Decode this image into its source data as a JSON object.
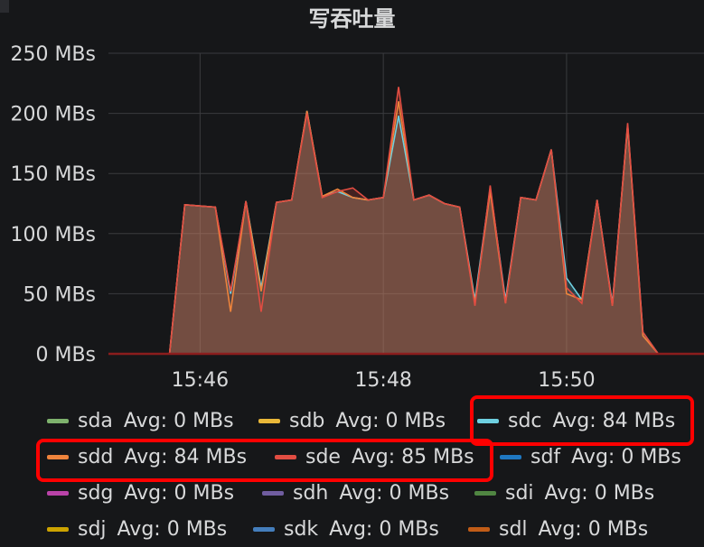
{
  "panel": {
    "title": "写吞吐量"
  },
  "chart_data": {
    "type": "area",
    "title": "写吞吐量",
    "x_ticks": [
      "15:46",
      "15:48",
      "15:50"
    ],
    "y_ticks": [
      "0 MBs",
      "50 MBs",
      "100 MBs",
      "150 MBs",
      "200 MBs",
      "250 MBs"
    ],
    "ylim": [
      0,
      250
    ],
    "x_range": [
      "15:45:00",
      "15:51:30"
    ],
    "grid": true,
    "x": [
      "15:45:40",
      "15:45:50",
      "15:46:00",
      "15:46:10",
      "15:46:20",
      "15:46:30",
      "15:46:40",
      "15:46:50",
      "15:47:00",
      "15:47:10",
      "15:47:20",
      "15:47:30",
      "15:47:40",
      "15:47:50",
      "15:48:00",
      "15:48:10",
      "15:48:20",
      "15:48:30",
      "15:48:40",
      "15:48:50",
      "15:49:00",
      "15:49:10",
      "15:49:20",
      "15:49:30",
      "15:49:40",
      "15:49:50",
      "15:50:00",
      "15:50:10",
      "15:50:20",
      "15:50:30",
      "15:50:40",
      "15:50:50",
      "15:51:00"
    ],
    "series": [
      {
        "name": "sda",
        "color": "#7eb26d",
        "values": [
          0,
          0,
          0,
          0,
          0,
          0,
          0,
          0,
          0,
          0,
          0,
          0,
          0,
          0,
          0,
          0,
          0,
          0,
          0,
          0,
          0,
          0,
          0,
          0,
          0,
          0,
          0,
          0,
          0,
          0,
          0,
          0,
          0
        ]
      },
      {
        "name": "sdb",
        "color": "#eab839",
        "values": [
          0,
          0,
          0,
          0,
          0,
          0,
          0,
          0,
          0,
          0,
          0,
          0,
          0,
          0,
          0,
          0,
          0,
          0,
          0,
          0,
          0,
          0,
          0,
          0,
          0,
          0,
          0,
          0,
          0,
          0,
          0,
          0,
          0
        ]
      },
      {
        "name": "sdc",
        "color": "#6ed0e0",
        "values": [
          0,
          124,
          123,
          122,
          50,
          127,
          55,
          126,
          128,
          202,
          131,
          135,
          130,
          128,
          130,
          198,
          128,
          132,
          125,
          122,
          45,
          138,
          45,
          130,
          128,
          170,
          63,
          45,
          128,
          42,
          190,
          18,
          0
        ]
      },
      {
        "name": "sdd",
        "color": "#ef843c",
        "values": [
          0,
          124,
          123,
          122,
          35,
          127,
          52,
          126,
          128,
          202,
          131,
          137,
          130,
          128,
          130,
          210,
          128,
          132,
          125,
          122,
          42,
          135,
          42,
          130,
          128,
          170,
          50,
          45,
          128,
          40,
          190,
          15,
          0
        ]
      },
      {
        "name": "sde",
        "color": "#e24d42",
        "values": [
          0,
          124,
          123,
          122,
          52,
          127,
          35,
          126,
          128,
          200,
          130,
          135,
          138,
          128,
          130,
          222,
          128,
          132,
          125,
          122,
          40,
          140,
          42,
          130,
          128,
          170,
          55,
          42,
          128,
          40,
          192,
          18,
          0
        ]
      },
      {
        "name": "sdf",
        "color": "#1f78c1",
        "values": [
          0,
          0,
          0,
          0,
          0,
          0,
          0,
          0,
          0,
          0,
          0,
          0,
          0,
          0,
          0,
          0,
          0,
          0,
          0,
          0,
          0,
          0,
          0,
          0,
          0,
          0,
          0,
          0,
          0,
          0,
          0,
          0,
          0
        ]
      },
      {
        "name": "sdg",
        "color": "#ba43a9",
        "values": [
          0,
          0,
          0,
          0,
          0,
          0,
          0,
          0,
          0,
          0,
          0,
          0,
          0,
          0,
          0,
          0,
          0,
          0,
          0,
          0,
          0,
          0,
          0,
          0,
          0,
          0,
          0,
          0,
          0,
          0,
          0,
          0,
          0
        ]
      },
      {
        "name": "sdh",
        "color": "#705da0",
        "values": [
          0,
          0,
          0,
          0,
          0,
          0,
          0,
          0,
          0,
          0,
          0,
          0,
          0,
          0,
          0,
          0,
          0,
          0,
          0,
          0,
          0,
          0,
          0,
          0,
          0,
          0,
          0,
          0,
          0,
          0,
          0,
          0,
          0
        ]
      },
      {
        "name": "sdi",
        "color": "#508642",
        "values": [
          0,
          0,
          0,
          0,
          0,
          0,
          0,
          0,
          0,
          0,
          0,
          0,
          0,
          0,
          0,
          0,
          0,
          0,
          0,
          0,
          0,
          0,
          0,
          0,
          0,
          0,
          0,
          0,
          0,
          0,
          0,
          0,
          0
        ]
      },
      {
        "name": "sdj",
        "color": "#cca300",
        "values": [
          0,
          0,
          0,
          0,
          0,
          0,
          0,
          0,
          0,
          0,
          0,
          0,
          0,
          0,
          0,
          0,
          0,
          0,
          0,
          0,
          0,
          0,
          0,
          0,
          0,
          0,
          0,
          0,
          0,
          0,
          0,
          0,
          0
        ]
      },
      {
        "name": "sdk",
        "color": "#447ebc",
        "values": [
          0,
          0,
          0,
          0,
          0,
          0,
          0,
          0,
          0,
          0,
          0,
          0,
          0,
          0,
          0,
          0,
          0,
          0,
          0,
          0,
          0,
          0,
          0,
          0,
          0,
          0,
          0,
          0,
          0,
          0,
          0,
          0,
          0
        ]
      },
      {
        "name": "sdl",
        "color": "#c15c17",
        "values": [
          0,
          0,
          0,
          0,
          0,
          0,
          0,
          0,
          0,
          0,
          0,
          0,
          0,
          0,
          0,
          0,
          0,
          0,
          0,
          0,
          0,
          0,
          0,
          0,
          0,
          0,
          0,
          0,
          0,
          0,
          0,
          0,
          0
        ]
      }
    ],
    "legend": [
      {
        "name": "sda",
        "avg": "Avg: 0 MBs"
      },
      {
        "name": "sdb",
        "avg": "Avg: 0 MBs"
      },
      {
        "name": "sdc",
        "avg": "Avg: 84 MBs"
      },
      {
        "name": "sdd",
        "avg": "Avg: 84 MBs"
      },
      {
        "name": "sde",
        "avg": "Avg: 85 MBs"
      },
      {
        "name": "sdf",
        "avg": "Avg: 0 MBs"
      },
      {
        "name": "sdg",
        "avg": "Avg: 0 MBs"
      },
      {
        "name": "sdh",
        "avg": "Avg: 0 MBs"
      },
      {
        "name": "sdi",
        "avg": "Avg: 0 MBs"
      },
      {
        "name": "sdj",
        "avg": "Avg: 0 MBs"
      },
      {
        "name": "sdk",
        "avg": "Avg: 0 MBs"
      },
      {
        "name": "sdl",
        "avg": "Avg: 0 MBs"
      }
    ],
    "highlighted": [
      "sdc",
      "sdd",
      "sde"
    ],
    "highlight_color": "#ff0000"
  }
}
